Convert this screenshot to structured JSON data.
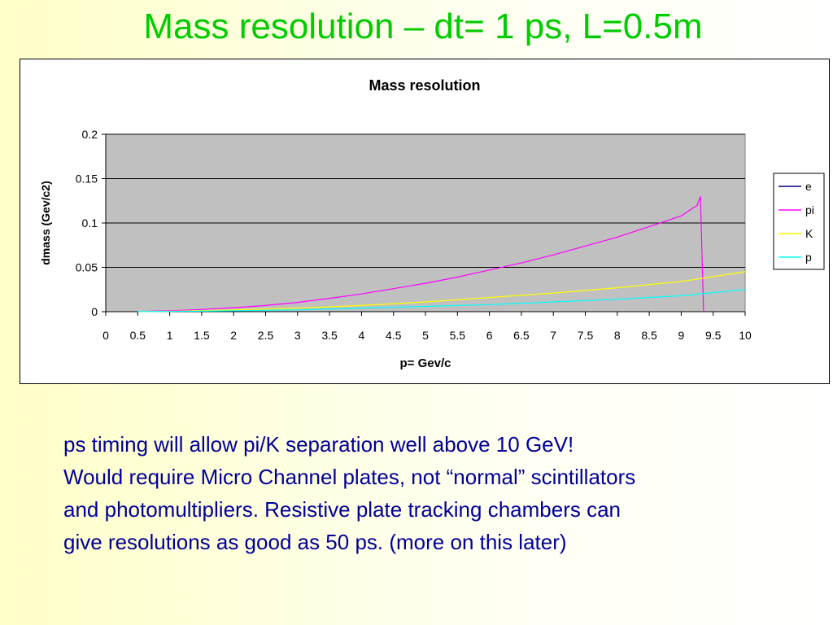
{
  "slide": {
    "title": "Mass resolution – dt= 1 ps, L=0.5m",
    "body_lines": [
      "ps timing will allow pi/K separation well above 10 GeV!",
      "Would require Micro Channel plates, not “normal” scintillators",
      "and photomultipliers. Resistive plate tracking chambers can",
      "give resolutions as good as 50 ps. (more on this later)"
    ]
  },
  "colors": {
    "title": "#00cc00",
    "body_text": "#000099",
    "plot_area": "#c0c0c0",
    "gridline": "#000000"
  },
  "chart_data": {
    "type": "line",
    "title": "Mass resolution",
    "xlabel": "p= Gev/c",
    "ylabel": "dmass (Gev/c2)",
    "xlim": [
      0,
      10
    ],
    "ylim": [
      0,
      0.2
    ],
    "x_ticks": [
      "0",
      "0.5",
      "1",
      "1.5",
      "2",
      "2.5",
      "3",
      "3.5",
      "4",
      "4.5",
      "5",
      "5.5",
      "6",
      "6.5",
      "7",
      "7.5",
      "8",
      "8.5",
      "9",
      "9.5",
      "10"
    ],
    "y_ticks": [
      "0",
      "0.05",
      "0.1",
      "0.15",
      "0.2"
    ],
    "grid": true,
    "legend_position": "right",
    "series": [
      {
        "name": "e",
        "color": "#000080",
        "x": [],
        "y": []
      },
      {
        "name": "pi",
        "color": "#ff00ff",
        "x": [
          0.5,
          1,
          1.5,
          2,
          2.5,
          3,
          3.5,
          4,
          4.5,
          5,
          5.5,
          6,
          6.5,
          7,
          7.5,
          8,
          8.5,
          9,
          9.25,
          9.3,
          9.35
        ],
        "y": [
          0.0003,
          0.001,
          0.0025,
          0.0045,
          0.007,
          0.0105,
          0.015,
          0.02,
          0.026,
          0.032,
          0.039,
          0.047,
          0.055,
          0.064,
          0.074,
          0.084,
          0.096,
          0.108,
          0.12,
          0.13,
          0.0
        ]
      },
      {
        "name": "K",
        "color": "#ffff00",
        "x": [
          0.5,
          1,
          2,
          3,
          4,
          5,
          6,
          7,
          8,
          9,
          10
        ],
        "y": [
          0.0001,
          0.0005,
          0.002,
          0.004,
          0.007,
          0.011,
          0.016,
          0.021,
          0.027,
          0.034,
          0.045
        ]
      },
      {
        "name": "p",
        "color": "#00ffff",
        "x": [
          0.5,
          1,
          2,
          3,
          4,
          5,
          6,
          7,
          8,
          9,
          10
        ],
        "y": [
          0.0001,
          0.0003,
          0.001,
          0.002,
          0.004,
          0.006,
          0.008,
          0.011,
          0.014,
          0.018,
          0.025
        ]
      }
    ]
  }
}
